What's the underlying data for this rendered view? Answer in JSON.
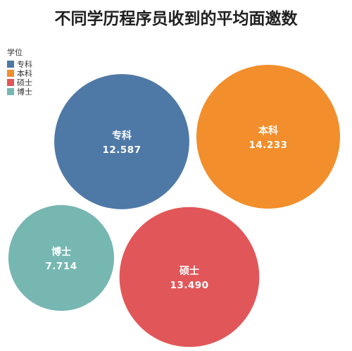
{
  "chart_data": {
    "type": "bubble",
    "title": "不同学历程序员收到的平均面邀数",
    "legend": {
      "title": "学位",
      "position": "top-left"
    },
    "categories": [
      "专科",
      "本科",
      "硕士",
      "博士"
    ],
    "values": [
      12.587,
      14.233,
      13.49,
      7.714
    ],
    "value_labels": [
      "12.587",
      "14.233",
      "13.490",
      "7.714"
    ],
    "colors": [
      "#4e79a7",
      "#f28e2b",
      "#e15759",
      "#76b7b2"
    ]
  }
}
